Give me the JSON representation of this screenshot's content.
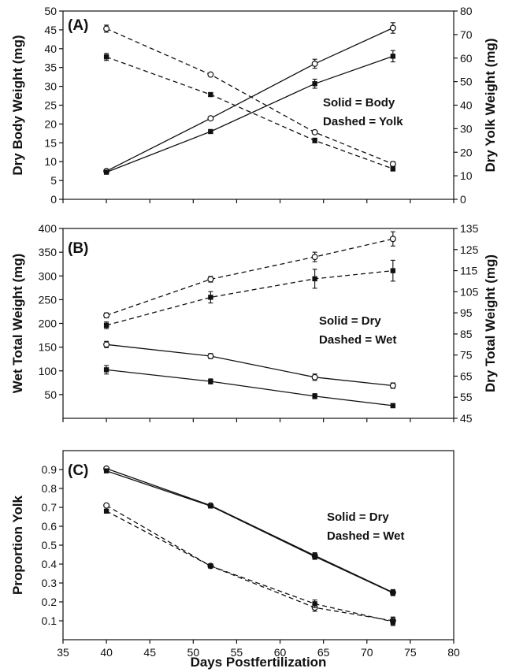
{
  "figure": {
    "xlabel": "Days Postfertilization",
    "x_ticks": [
      35,
      40,
      45,
      50,
      55,
      60,
      65,
      70,
      75,
      80
    ]
  },
  "chart_data": [
    {
      "type": "line",
      "panel": "(A)",
      "ylabel": "Dry Body Weight (mg)",
      "ylabel_right": "Dry Yolk Weight (mg)",
      "ylim": [
        0,
        50
      ],
      "ylim_right": [
        0,
        80
      ],
      "y_ticks": [
        0,
        5,
        10,
        15,
        20,
        25,
        30,
        35,
        40,
        45,
        50
      ],
      "y_ticks_right": [
        0,
        10,
        20,
        30,
        40,
        50,
        60,
        70,
        80
      ],
      "annotations": [
        "Solid = Body",
        "Dashed = Yolk"
      ],
      "series": [
        {
          "style": "solid",
          "marker": "open",
          "axis": "left",
          "x": [
            40,
            52,
            64,
            73
          ],
          "y": [
            7.5,
            21.5,
            36,
            45.5
          ],
          "err": [
            0.3,
            0.4,
            1.2,
            1.4
          ]
        },
        {
          "style": "solid",
          "marker": "filled",
          "axis": "left",
          "x": [
            40,
            52,
            64,
            73
          ],
          "y": [
            7.2,
            18,
            30.7,
            38
          ],
          "err": [
            0.3,
            0.4,
            1.2,
            1.5
          ]
        },
        {
          "style": "dashed",
          "marker": "open",
          "axis": "right",
          "x": [
            40,
            52,
            64,
            73
          ],
          "y": [
            72.5,
            53,
            28.5,
            15
          ],
          "err": [
            1.5,
            0.7,
            0.8,
            1.0
          ]
        },
        {
          "style": "dashed",
          "marker": "filled",
          "axis": "right",
          "x": [
            40,
            52,
            64,
            73
          ],
          "y": [
            60.5,
            44.5,
            25,
            13
          ],
          "err": [
            1.5,
            0.8,
            1.0,
            1.0
          ]
        }
      ]
    },
    {
      "type": "line",
      "panel": "(B)",
      "ylabel": "Wet Total Weight (mg)",
      "ylabel_right": "Dry Total Weight (mg)",
      "ylim": [
        0,
        400
      ],
      "ylim_right": [
        45,
        135
      ],
      "y_ticks": [
        50,
        100,
        150,
        200,
        250,
        300,
        350,
        400
      ],
      "y_ticks_right": [
        45,
        55,
        65,
        75,
        85,
        95,
        105,
        115,
        125,
        135
      ],
      "annotations": [
        "Solid = Dry",
        "Dashed = Wet"
      ],
      "series": [
        {
          "style": "dashed",
          "marker": "open",
          "axis": "left",
          "x": [
            40,
            52,
            64,
            73
          ],
          "y": [
            217,
            293,
            340,
            378
          ],
          "err": [
            5,
            6,
            10,
            15
          ]
        },
        {
          "style": "dashed",
          "marker": "filled",
          "axis": "left",
          "x": [
            40,
            52,
            64,
            73
          ],
          "y": [
            196,
            255,
            294,
            311
          ],
          "err": [
            7,
            12,
            20,
            22
          ]
        },
        {
          "style": "solid",
          "marker": "open",
          "axis": "right",
          "x": [
            40,
            52,
            64,
            73
          ],
          "y": [
            80,
            74.5,
            64.5,
            60.5
          ],
          "err": [
            1.5,
            1.2,
            1.5,
            1.3
          ]
        },
        {
          "style": "solid",
          "marker": "filled",
          "axis": "right",
          "x": [
            40,
            52,
            64,
            73
          ],
          "y": [
            68,
            62.5,
            55.5,
            51
          ],
          "err": [
            2.0,
            1.2,
            1.2,
            1.0
          ]
        }
      ]
    },
    {
      "type": "line",
      "panel": "(C)",
      "ylabel": "Proportion Yolk",
      "ylim": [
        0,
        1
      ],
      "y_ticks": [
        0.1,
        0.2,
        0.3,
        0.4,
        0.5,
        0.6,
        0.7,
        0.8,
        0.9
      ],
      "annotations": [
        "Solid = Dry",
        "Dashed = Wet"
      ],
      "series": [
        {
          "style": "solid",
          "marker": "open",
          "x": [
            40,
            52,
            64,
            73
          ],
          "y": [
            0.905,
            0.71,
            0.445,
            0.25
          ],
          "err": [
            0.005,
            0.008,
            0.015,
            0.015
          ]
        },
        {
          "style": "solid",
          "marker": "filled",
          "x": [
            40,
            52,
            64,
            73
          ],
          "y": [
            0.893,
            0.707,
            0.44,
            0.248
          ],
          "err": [
            0.005,
            0.008,
            0.015,
            0.015
          ]
        },
        {
          "style": "dashed",
          "marker": "open",
          "x": [
            40,
            52,
            64,
            73
          ],
          "y": [
            0.71,
            0.39,
            0.17,
            0.1
          ],
          "err": [
            0.005,
            0.01,
            0.02,
            0.02
          ]
        },
        {
          "style": "dashed",
          "marker": "filled",
          "x": [
            40,
            52,
            64,
            73
          ],
          "y": [
            0.68,
            0.39,
            0.19,
            0.095
          ],
          "err": [
            0.005,
            0.01,
            0.02,
            0.02
          ]
        }
      ]
    }
  ]
}
